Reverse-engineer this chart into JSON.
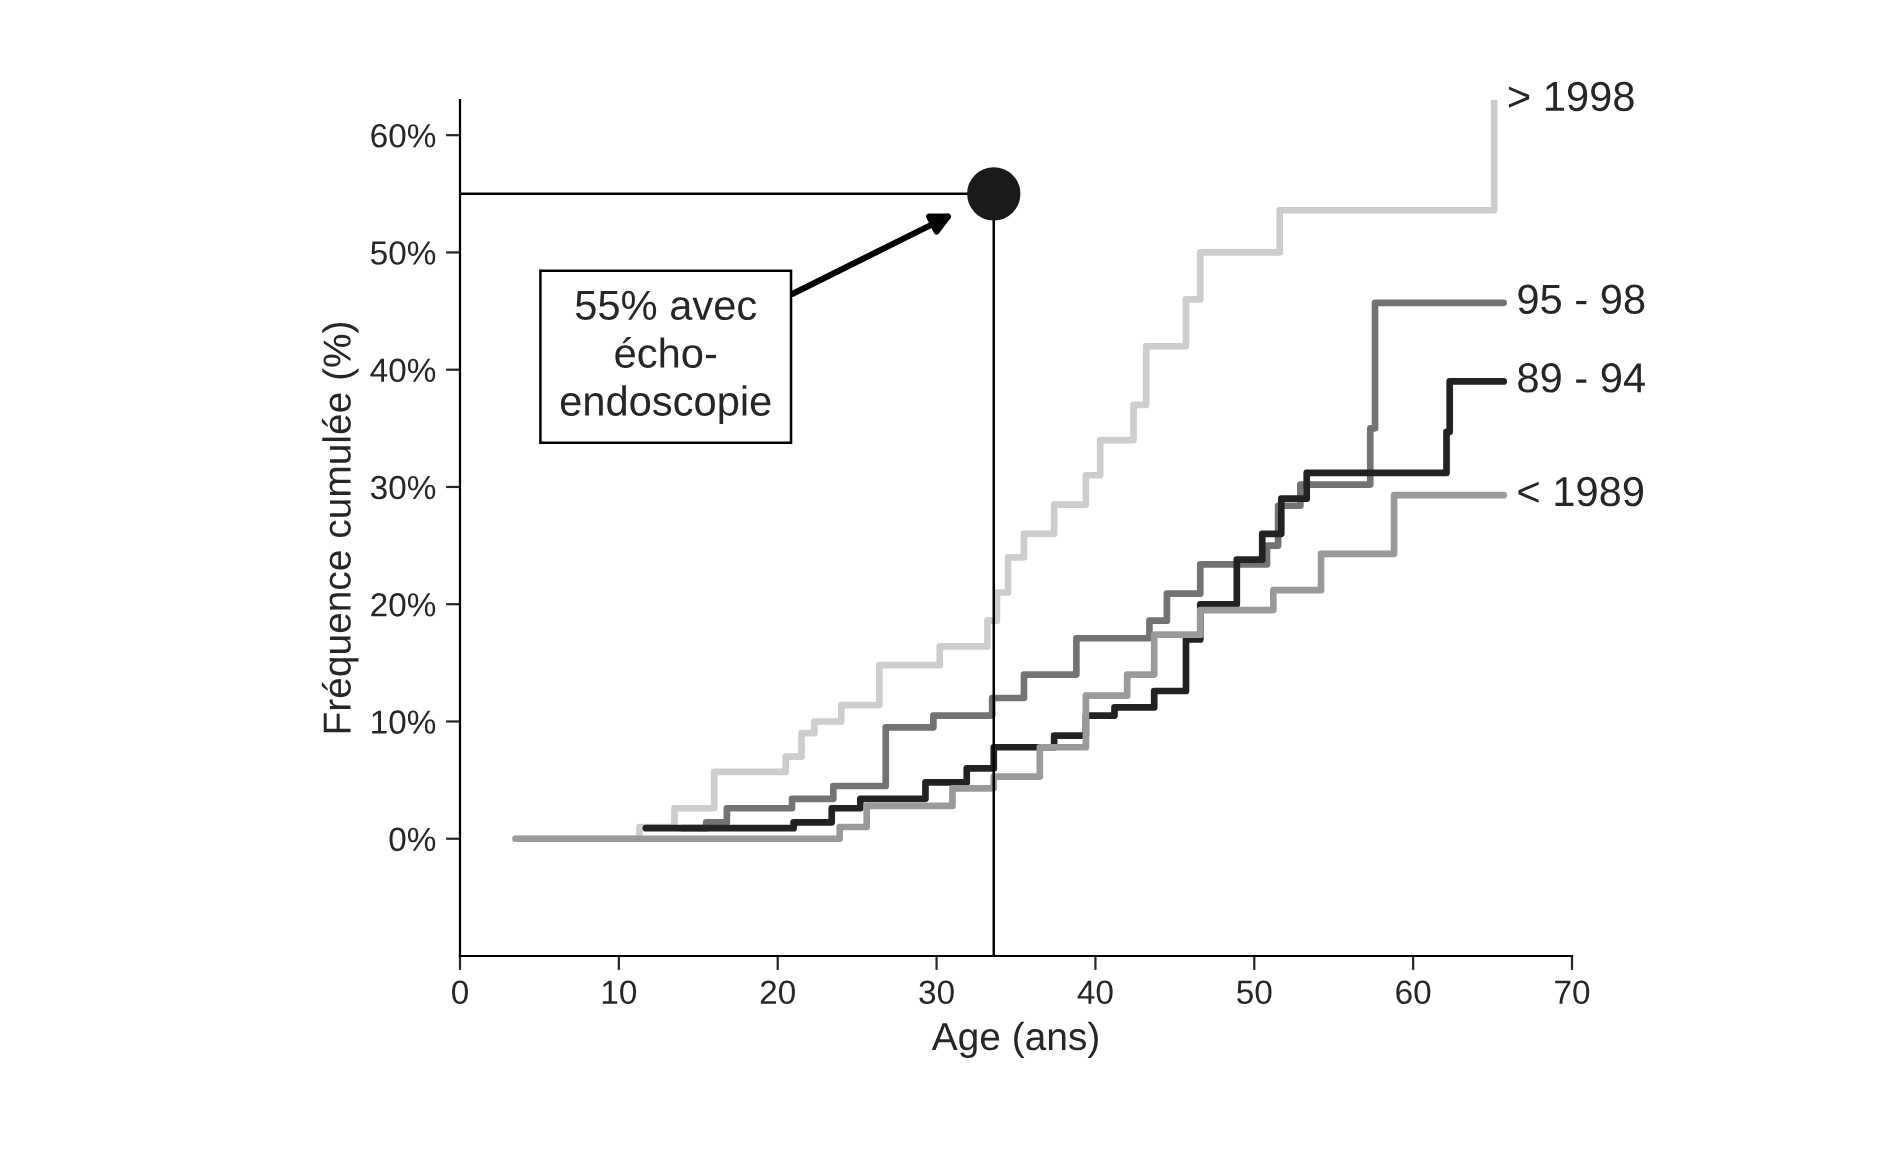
{
  "chart_data": {
    "type": "step",
    "xlabel": "Age (ans)",
    "ylabel": "Fréquence cumulée (%)",
    "xlim": [
      0,
      70
    ],
    "xticks": [
      0,
      10,
      20,
      30,
      40,
      50,
      60,
      70
    ],
    "ylim": [
      -10,
      63
    ],
    "yticks": [
      {
        "value": 0,
        "label": "0%"
      },
      {
        "value": 10,
        "label": "10%"
      },
      {
        "value": 20,
        "label": "20%"
      },
      {
        "value": 30,
        "label": "30%"
      },
      {
        "value": 40,
        "label": "40%"
      },
      {
        "value": 50,
        "label": "50%"
      },
      {
        "value": 60,
        "label": "60%"
      }
    ],
    "grid": false,
    "legend": false,
    "marker": "none",
    "line_style": "solid",
    "series": [
      {
        "name": "> 1998",
        "color": "#cdcdcd",
        "x": [
          3.5,
          11.3,
          13.5,
          16,
          20.5,
          21.5,
          22.3,
          24,
          26.4,
          30.2,
          33.2,
          33.8,
          34.5,
          35.5,
          37.4,
          39.4,
          40.3,
          42.4,
          43.2,
          45.7,
          46.6,
          51.6,
          65.1
        ],
        "values": [
          0,
          1,
          2.6,
          5.7,
          7,
          9,
          10,
          11.4,
          14.8,
          16.4,
          18.6,
          21,
          24,
          26,
          28.5,
          31,
          34,
          37,
          42,
          46,
          50,
          53.6,
          63
        ]
      },
      {
        "name": "95 - 98",
        "color": "#737373",
        "x": [
          14,
          15.5,
          16.8,
          20.9,
          23.5,
          26.8,
          29.8,
          33.5,
          35.5,
          38.8,
          43.4,
          44.5,
          46.6,
          50.8,
          51.5,
          52.9,
          57.3,
          57.6,
          65.7
        ],
        "values": [
          0.9,
          1.4,
          2.6,
          3.4,
          4.5,
          9.5,
          10.5,
          12,
          14,
          17.1,
          18.6,
          20.9,
          23.4,
          25,
          28.4,
          30.2,
          35,
          45.7,
          45.7
        ]
      },
      {
        "name": "89 - 94",
        "color": "#222222",
        "x": [
          11.7,
          21,
          23.4,
          25.2,
          29.3,
          31.9,
          33.6,
          37.4,
          39.4,
          41.2,
          43.7,
          45.7,
          46.6,
          48.9,
          50.5,
          51.7,
          53.3,
          62.1,
          62.3,
          65.7
        ],
        "values": [
          0.9,
          1.4,
          2.6,
          3.4,
          4.8,
          6,
          7.8,
          8.8,
          10.5,
          11.2,
          12.6,
          17,
          20,
          23.8,
          26,
          29,
          31.2,
          34.7,
          39,
          39
        ]
      },
      {
        "name": "< 1989",
        "color": "#9a9a9a",
        "x": [
          3.5,
          23.9,
          25.6,
          31,
          33.6,
          36.5,
          39.4,
          42,
          43.7,
          46.6,
          51.2,
          54.2,
          58.8,
          65.7
        ],
        "values": [
          0,
          1,
          2.8,
          4.3,
          5.3,
          7.8,
          12.2,
          14,
          17.4,
          19.5,
          21.2,
          24.3,
          29.3,
          29.3
        ]
      },
      {
        "type": "scatter",
        "marker": "circle",
        "color": "#1a1a1a",
        "x": [
          33.6
        ],
        "values": [
          55
        ]
      }
    ],
    "ref_lines": [
      {
        "axis": "y",
        "value": 55,
        "color": "#000000"
      },
      {
        "axis": "x",
        "value": 33.6,
        "color": "#000000"
      }
    ],
    "annotations": [
      "55% avec\nécho-\nendoscopie"
    ]
  }
}
